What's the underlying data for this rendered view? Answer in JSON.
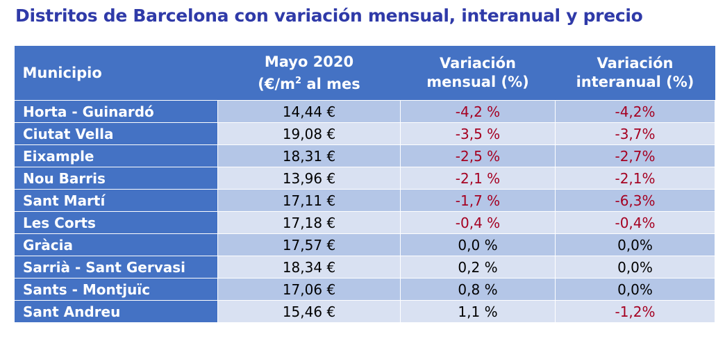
{
  "title": "Distritos de Barcelona con variación mensual, interanual y precio",
  "headers": {
    "municipio": "Municipio",
    "price_line1": "Mayo 2020",
    "price_line2a": "(€/m",
    "price_sup": "2",
    "price_line2b": " al mes",
    "mensual_line1": "Variación",
    "mensual_line2": "mensual (%)",
    "interanual_line1": "Variación",
    "interanual_line2": "interanual (%)"
  },
  "rows": [
    {
      "name": "Horta - Guinardó",
      "price": "14,44 €",
      "mensual": "-4,2 %",
      "interanual": "-4,2%",
      "mneg": true,
      "ineg": true
    },
    {
      "name": "Ciutat Vella",
      "price": "19,08 €",
      "mensual": "-3,5 %",
      "interanual": "-3,7%",
      "mneg": true,
      "ineg": true
    },
    {
      "name": "Eixample",
      "price": "18,31 €",
      "mensual": "-2,5 %",
      "interanual": "-2,7%",
      "mneg": true,
      "ineg": true
    },
    {
      "name": "Nou Barris",
      "price": "13,96 €",
      "mensual": "-2,1 %",
      "interanual": "-2,1%",
      "mneg": true,
      "ineg": true
    },
    {
      "name": "Sant Martí",
      "price": "17,11 €",
      "mensual": "-1,7 %",
      "interanual": "-6,3%",
      "mneg": true,
      "ineg": true
    },
    {
      "name": "Les Corts",
      "price": "17,18 €",
      "mensual": "-0,4 %",
      "interanual": "-0,4%",
      "mneg": true,
      "ineg": true
    },
    {
      "name": "Gràcia",
      "price": "17,57 €",
      "mensual": "0,0 %",
      "interanual": "0,0%",
      "mneg": false,
      "ineg": false
    },
    {
      "name": "Sarrià - Sant Gervasi",
      "price": "18,34 €",
      "mensual": "0,2 %",
      "interanual": "0,0%",
      "mneg": false,
      "ineg": false
    },
    {
      "name": "Sants - Montjuïc",
      "price": "17,06 €",
      "mensual": "0,8 %",
      "interanual": "0,0%",
      "mneg": false,
      "ineg": false
    },
    {
      "name": "Sant Andreu",
      "price": "15,46 €",
      "mensual": "1,1 %",
      "interanual": "-1,2%",
      "mneg": false,
      "ineg": true
    }
  ]
}
